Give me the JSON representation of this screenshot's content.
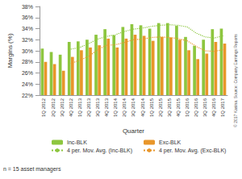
{
  "chart_data": {
    "type": "bar",
    "y_label": "Margins (%)",
    "x_label": "Quarter",
    "note": "n = 15 asset managers",
    "source": "© 2017 Kasina. Source: Company Earnings Reports",
    "categories": [
      "1Q 2012",
      "2Q 2012",
      "3Q 2012",
      "4Q 2012",
      "1Q 2013",
      "2Q 2013",
      "3Q 2013",
      "4Q 2013",
      "1Q 2014",
      "2Q 2014",
      "3Q 2014",
      "4Q 2014",
      "1Q 2015",
      "2Q 2015",
      "3Q 2015",
      "4Q 2015",
      "1Q 2016",
      "2Q 2016",
      "3Q 2016",
      "4Q 2016",
      "1Q 2017"
    ],
    "series": [
      {
        "name": "Inc-BLK",
        "type": "bar",
        "color": "#8dc63f",
        "values": [
          30.4,
          29.8,
          29.3,
          31.6,
          31.7,
          32.0,
          32.9,
          33.9,
          32.8,
          34.3,
          34.8,
          34.6,
          34.0,
          35.0,
          35.0,
          34.5,
          32.5,
          30.9,
          32.0,
          33.9,
          34.0
        ]
      },
      {
        "name": "Exc-BLK",
        "type": "bar",
        "color": "#e8962a",
        "values": [
          28.0,
          27.6,
          26.4,
          28.9,
          30.1,
          30.6,
          31.0,
          32.2,
          30.6,
          32.2,
          32.9,
          32.7,
          31.8,
          32.5,
          32.4,
          32.0,
          30.1,
          28.5,
          29.5,
          31.6,
          31.3
        ]
      },
      {
        "name": "4 per. Mov. Avg. (Inc-BLK)",
        "type": "line",
        "line_style": "dotted",
        "color": "#8dc63f",
        "values": [
          null,
          null,
          null,
          30.3,
          30.6,
          31.3,
          32.1,
          32.6,
          32.9,
          33.5,
          33.9,
          34.1,
          34.4,
          34.6,
          34.7,
          34.6,
          34.3,
          33.2,
          32.5,
          32.3,
          32.7
        ]
      },
      {
        "name": "4 per. Mov. Avg. (Exc-BLK)",
        "type": "line",
        "line_style": "dotted",
        "color": "#e8962a",
        "values": [
          null,
          null,
          null,
          27.7,
          28.3,
          29.0,
          30.2,
          31.0,
          31.1,
          31.5,
          32.0,
          32.1,
          32.4,
          32.5,
          32.4,
          32.2,
          31.8,
          30.8,
          30.0,
          29.9,
          30.2
        ]
      }
    ],
    "ylim": [
      22,
      38
    ],
    "yticks": [
      {
        "value": 22,
        "label": "22%"
      },
      {
        "value": 24,
        "label": "24%"
      },
      {
        "value": 26,
        "label": "26%"
      },
      {
        "value": 28,
        "label": "28%"
      },
      {
        "value": 30,
        "label": "30%"
      },
      {
        "value": 32,
        "label": "32%"
      },
      {
        "value": 34,
        "label": "34%"
      },
      {
        "value": 36,
        "label": "36%"
      },
      {
        "value": 38,
        "label": "38%"
      }
    ],
    "grid": false,
    "legend": "bottom"
  }
}
